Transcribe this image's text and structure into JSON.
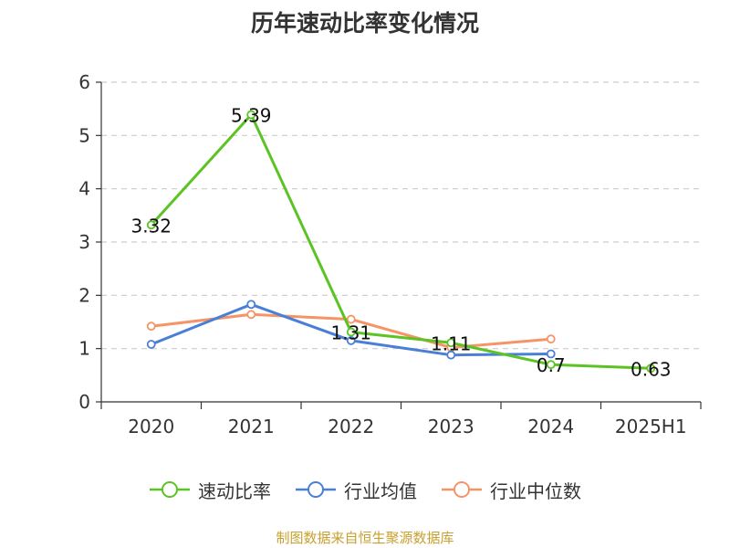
{
  "title": "历年速动比率变化情况",
  "source": "制图数据来自恒生聚源数据库",
  "colors": {
    "series0": "#5bc324",
    "series1": "#4a7fd6",
    "series2": "#f59466",
    "grid": "#cccccc",
    "axis": "#333333",
    "source_text": "#c8a030"
  },
  "chart_data": {
    "type": "line",
    "title": "历年速动比率变化情况",
    "categories": [
      "2020",
      "2021",
      "2022",
      "2023",
      "2024",
      "2025H1"
    ],
    "y_ticks": [
      "0",
      "1",
      "2",
      "3",
      "4",
      "5",
      "6"
    ],
    "ylim": [
      0,
      6
    ],
    "grid": true,
    "legend_position": "bottom",
    "series": [
      {
        "name": "速动比率",
        "values": [
          3.32,
          5.39,
          1.31,
          1.11,
          0.7,
          0.63
        ],
        "labels": [
          "3.32",
          "5.39",
          "1.31",
          "1.11",
          "0.7",
          "0.63"
        ]
      },
      {
        "name": "行业均值",
        "values": [
          1.08,
          1.83,
          1.15,
          0.88,
          0.9,
          null
        ]
      },
      {
        "name": "行业中位数",
        "values": [
          1.42,
          1.64,
          1.55,
          1.02,
          1.18,
          null
        ]
      }
    ]
  }
}
